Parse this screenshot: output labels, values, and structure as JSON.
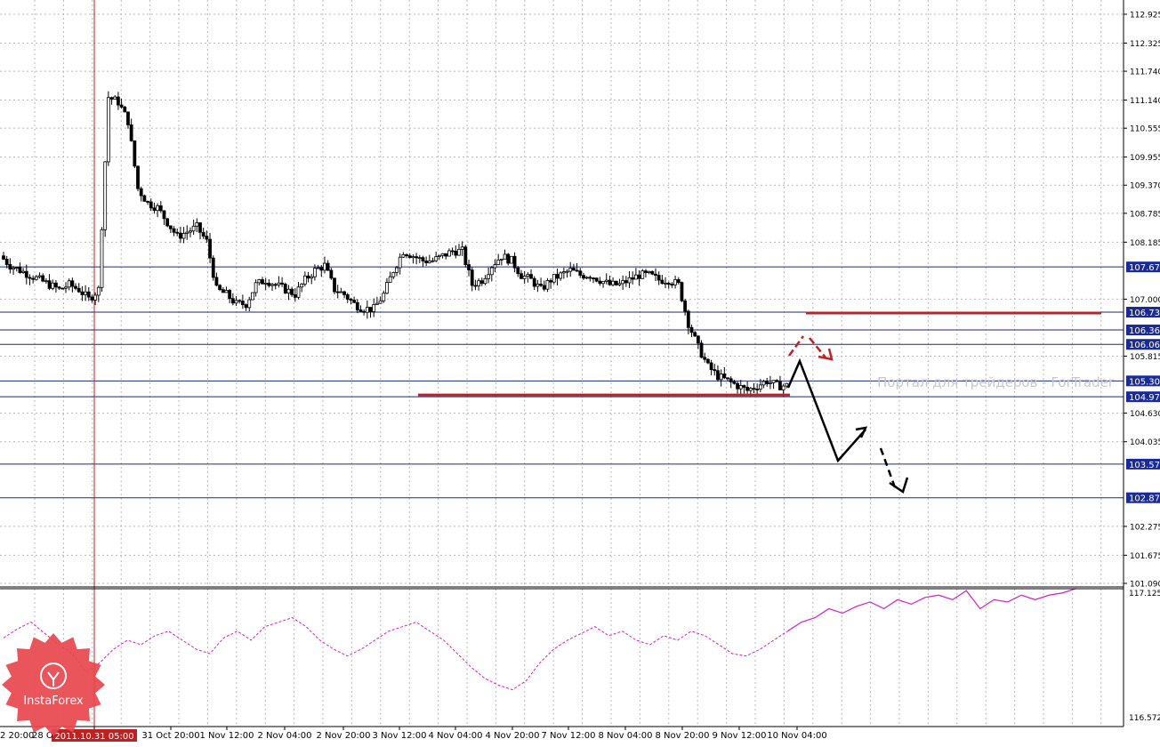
{
  "chart_data": [
    {
      "type": "candlestick",
      "panel": "price",
      "ylim": [
        101.09,
        112.925
      ],
      "y_ticks": [
        "112.925",
        "112.325",
        "111.740",
        "111.140",
        "110.555",
        "109.955",
        "109.370",
        "108.785",
        "108.185",
        "107.000",
        "105.815",
        "104.630",
        "104.035",
        "102.275",
        "101.675",
        "101.090"
      ],
      "grid": true,
      "levels": [
        {
          "label": "107.67",
          "value": 107.67
        },
        {
          "label": "106.73",
          "value": 106.73
        },
        {
          "label": "106.36",
          "value": 106.36
        },
        {
          "label": "106.06",
          "value": 106.06
        },
        {
          "label": "105.30",
          "value": 105.3
        },
        {
          "label": "104.97",
          "value": 104.97
        },
        {
          "label": "103.57",
          "value": 103.57
        },
        {
          "label": "102.87",
          "value": 102.87
        }
      ],
      "x_labels": [
        "2011.10.31 05:00",
        "31 Oct 20:00",
        "1 Nov 12:00",
        "2 Nov 04:00",
        "2 Nov 20:00",
        "3 Nov 12:00",
        "4 Nov 04:00",
        "4 Nov 20:00",
        "7 Nov 12:00",
        "8 Nov 04:00",
        "8 Nov 20:00",
        "9 Nov 12:00",
        "10 Nov 04:00"
      ],
      "x_label_partial_left": [
        "2 20:00",
        "28 O"
      ],
      "watermark": "Портал для трейдеров - ForTrader",
      "cursor_time": "2011.10.31 05:00",
      "price_path": [
        107.9,
        107.7,
        107.6,
        107.5,
        107.4,
        107.3,
        107.2,
        107.3,
        107.2,
        107.0,
        107.2,
        111.2,
        111.1,
        110.7,
        109.3,
        109.0,
        108.9,
        108.6,
        108.3,
        108.4,
        108.5,
        108.2,
        107.2,
        107.1,
        106.9,
        106.9,
        107.3,
        107.4,
        107.3,
        107.2,
        107.1,
        107.4,
        107.6,
        107.7,
        107.2,
        107.1,
        106.9,
        106.8,
        106.8,
        107.1,
        107.6,
        108.0,
        107.9,
        107.8,
        107.8,
        107.9,
        108.0,
        108.0,
        107.3,
        107.4,
        107.7,
        107.9,
        107.8,
        107.5,
        107.4,
        107.2,
        107.4,
        107.5,
        107.6,
        107.5,
        107.5,
        107.4,
        107.3,
        107.3,
        107.4,
        107.5,
        107.5,
        107.4,
        107.4,
        107.3,
        106.5,
        106.0,
        105.6,
        105.4,
        105.3,
        105.2,
        105.1,
        105.2,
        105.3,
        105.2,
        105.2
      ],
      "annotations": [
        {
          "kind": "support",
          "color": "#c0202a",
          "value": 104.97
        },
        {
          "kind": "resistance",
          "color": "#c0202a",
          "value": 106.73
        }
      ]
    },
    {
      "type": "line",
      "panel": "indicator",
      "color": "#d020c0",
      "style": "dashed-then-solid",
      "ylim": [
        116.572,
        117.125
      ],
      "y_ticks": [
        "117.125",
        "116.572"
      ],
      "values": [
        116.93,
        116.97,
        117.0,
        116.95,
        116.9,
        116.86,
        116.78,
        116.82,
        116.88,
        116.92,
        116.9,
        116.94,
        116.96,
        116.92,
        116.88,
        116.86,
        116.93,
        116.96,
        116.92,
        116.98,
        117.0,
        117.02,
        116.98,
        116.92,
        116.88,
        116.85,
        116.88,
        116.92,
        116.96,
        116.98,
        117.0,
        116.96,
        116.92,
        116.86,
        116.8,
        116.75,
        116.72,
        116.7,
        116.74,
        116.82,
        116.88,
        116.92,
        116.95,
        116.98,
        116.94,
        116.96,
        116.92,
        116.9,
        116.94,
        116.92,
        116.96,
        116.94,
        116.9,
        116.86,
        116.85,
        116.88,
        116.92,
        116.96,
        117.0,
        117.02,
        117.06,
        117.04,
        117.07,
        117.09,
        117.06,
        117.1,
        117.08,
        117.11,
        117.12,
        117.1,
        117.14,
        117.06,
        117.1,
        117.09,
        117.12,
        117.1,
        117.12,
        117.13,
        117.15
      ]
    }
  ],
  "branding": {
    "logo_text": "InstaForex"
  },
  "colors": {
    "level_line": "#1a2a7a",
    "label_bg": "#1a2a9a",
    "cursor_line": "#c02020",
    "grid": "#b8b8b8",
    "candle": "#000000",
    "indicator": "#d020c0",
    "forecast_black": "#000000",
    "forecast_red": "#c0202a",
    "logo": "#e8474e"
  }
}
